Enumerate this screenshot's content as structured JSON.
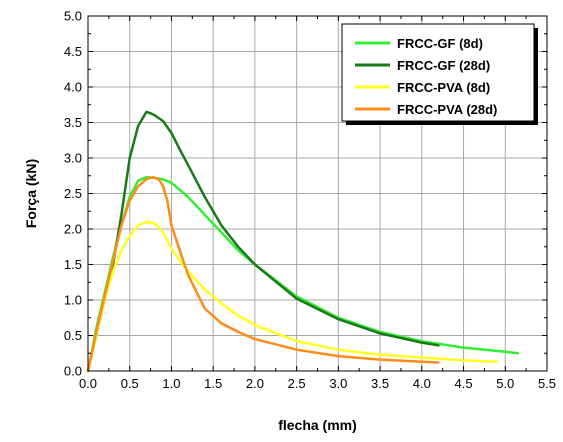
{
  "chart_data": {
    "type": "line",
    "title": "",
    "xlabel": "flecha (mm)",
    "ylabel": "Força (kN)",
    "xlim": [
      0.0,
      5.5
    ],
    "ylim": [
      0.0,
      5.0
    ],
    "x_ticks": [
      0.0,
      0.5,
      1.0,
      1.5,
      2.0,
      2.5,
      3.0,
      3.5,
      4.0,
      4.5,
      5.0,
      5.5
    ],
    "y_ticks": [
      0.0,
      0.5,
      1.0,
      1.5,
      2.0,
      2.5,
      3.0,
      3.5,
      4.0,
      4.5,
      5.0
    ],
    "x_tick_labels": [
      "0.0",
      "0.5",
      "1.0",
      "1.5",
      "2.0",
      "2.5",
      "3.0",
      "3.5",
      "4.0",
      "4.5",
      "5.0",
      "5.5"
    ],
    "y_tick_labels": [
      "0.0",
      "0.5",
      "1.0",
      "1.5",
      "2.0",
      "2.5",
      "3.0",
      "3.5",
      "4.0",
      "4.5",
      "5.0"
    ],
    "grid": true,
    "legend_position": "top-right",
    "series": [
      {
        "name": "FRCC-GF (8d)",
        "color": "#33ee33",
        "x": [
          0.0,
          0.1,
          0.2,
          0.3,
          0.4,
          0.5,
          0.6,
          0.7,
          0.8,
          0.9,
          1.0,
          1.2,
          1.4,
          1.6,
          1.8,
          2.0,
          2.5,
          3.0,
          3.5,
          4.0,
          4.5,
          5.0,
          5.15
        ],
        "y": [
          0.0,
          0.6,
          1.1,
          1.6,
          2.05,
          2.45,
          2.68,
          2.73,
          2.72,
          2.7,
          2.65,
          2.45,
          2.2,
          1.95,
          1.7,
          1.5,
          1.05,
          0.75,
          0.55,
          0.42,
          0.33,
          0.27,
          0.25
        ]
      },
      {
        "name": "FRCC-GF (28d)",
        "color": "#1a7a1a",
        "x": [
          0.0,
          0.1,
          0.2,
          0.3,
          0.4,
          0.5,
          0.6,
          0.7,
          0.75,
          0.8,
          0.9,
          1.0,
          1.1,
          1.2,
          1.4,
          1.6,
          1.8,
          2.0,
          2.5,
          3.0,
          3.5,
          4.0,
          4.2
        ],
        "y": [
          0.0,
          0.5,
          1.0,
          1.5,
          2.2,
          3.0,
          3.45,
          3.65,
          3.63,
          3.6,
          3.52,
          3.35,
          3.12,
          2.9,
          2.45,
          2.05,
          1.75,
          1.5,
          1.02,
          0.73,
          0.53,
          0.4,
          0.36
        ]
      },
      {
        "name": "FRCC-PVA (8d)",
        "color": "#ffff22",
        "x": [
          0.0,
          0.1,
          0.2,
          0.3,
          0.4,
          0.5,
          0.6,
          0.7,
          0.8,
          0.9,
          1.0,
          1.2,
          1.4,
          1.6,
          1.8,
          2.0,
          2.5,
          3.0,
          3.5,
          4.0,
          4.5,
          4.9
        ],
        "y": [
          0.0,
          0.5,
          1.0,
          1.4,
          1.7,
          1.9,
          2.05,
          2.1,
          2.08,
          1.95,
          1.72,
          1.4,
          1.15,
          0.95,
          0.78,
          0.65,
          0.42,
          0.3,
          0.23,
          0.19,
          0.15,
          0.13
        ]
      },
      {
        "name": "FRCC-PVA (28d)",
        "color": "#ff8c1a",
        "x": [
          0.0,
          0.1,
          0.2,
          0.3,
          0.4,
          0.5,
          0.6,
          0.7,
          0.78,
          0.85,
          0.9,
          0.95,
          1.0,
          1.1,
          1.2,
          1.4,
          1.6,
          1.8,
          2.0,
          2.5,
          3.0,
          3.5,
          4.0,
          4.2
        ],
        "y": [
          0.0,
          0.55,
          1.05,
          1.55,
          2.05,
          2.4,
          2.6,
          2.7,
          2.73,
          2.7,
          2.6,
          2.4,
          2.05,
          1.7,
          1.35,
          0.88,
          0.67,
          0.55,
          0.45,
          0.3,
          0.21,
          0.16,
          0.13,
          0.12
        ]
      }
    ]
  }
}
